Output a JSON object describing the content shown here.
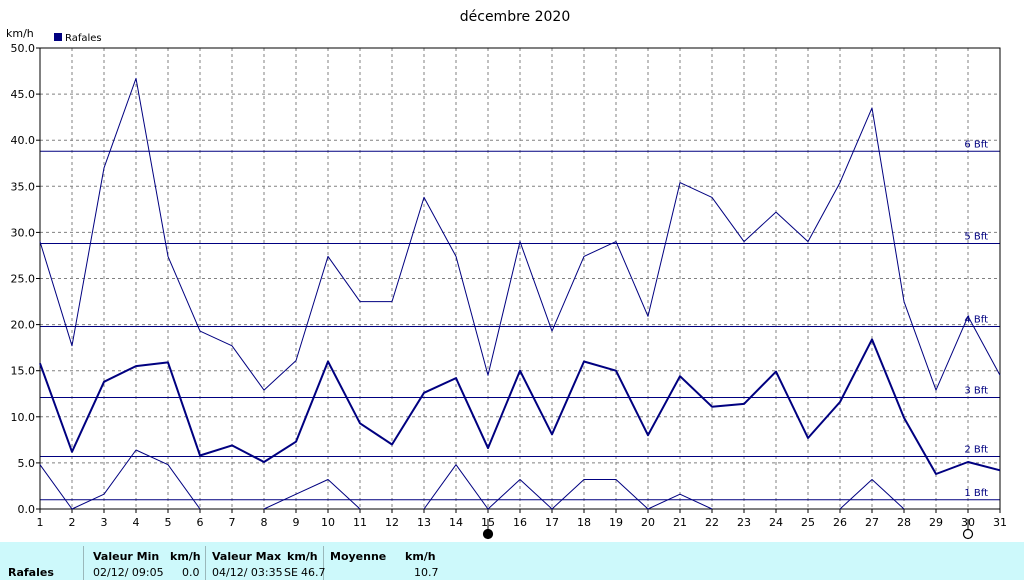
{
  "title": "décembre 2020",
  "y_unit": "km/h",
  "legend": {
    "label": "Rafales",
    "color": "#000080"
  },
  "colors": {
    "line": "#000080",
    "grid": "#808080",
    "footer_bg": "#cdf9fb"
  },
  "chart_data": {
    "type": "line",
    "title": "décembre 2020",
    "ylabel": "km/h",
    "xlabel": "",
    "ylim": [
      0,
      50
    ],
    "y_ticks": [
      "0.0",
      "5.0",
      "10.0",
      "15.0",
      "20.0",
      "25.0",
      "30.0",
      "35.0",
      "40.0",
      "45.0",
      "50.0"
    ],
    "x": [
      1,
      2,
      3,
      4,
      5,
      6,
      7,
      8,
      9,
      10,
      11,
      12,
      13,
      14,
      15,
      16,
      17,
      18,
      19,
      20,
      21,
      22,
      23,
      24,
      25,
      26,
      27,
      28,
      29,
      30,
      31
    ],
    "grid": true,
    "legend_position": "top-left",
    "series": [
      {
        "name": "Rafales",
        "role": "max",
        "values": [
          29.0,
          17.7,
          37.0,
          46.7,
          27.4,
          19.3,
          17.7,
          12.9,
          16.1,
          27.4,
          22.5,
          22.5,
          33.8,
          27.4,
          14.5,
          29.0,
          19.3,
          27.4,
          29.0,
          20.9,
          35.4,
          33.8,
          29.0,
          32.2,
          29.0,
          35.4,
          43.5,
          22.5,
          12.9,
          20.9,
          14.5
        ]
      },
      {
        "name": "Rafales",
        "role": "mean",
        "values": [
          15.8,
          6.2,
          13.8,
          15.5,
          15.9,
          5.8,
          6.9,
          5.1,
          7.3,
          16.0,
          9.3,
          7.0,
          12.6,
          14.2,
          6.6,
          15.0,
          8.1,
          16.0,
          15.0,
          8.0,
          14.4,
          11.1,
          11.4,
          14.9,
          7.7,
          11.6,
          18.4,
          9.9,
          3.8,
          5.1,
          4.2
        ]
      },
      {
        "name": "Rafales",
        "role": "min",
        "values": [
          4.8,
          0.0,
          1.6,
          6.4,
          4.8,
          0.0,
          null,
          0.0,
          1.6,
          3.2,
          0.0,
          null,
          0.0,
          4.8,
          0.0,
          3.2,
          0.0,
          3.2,
          3.2,
          0.0,
          1.6,
          0.0,
          null,
          null,
          null,
          0.0,
          3.2,
          0.0,
          null,
          null,
          null
        ]
      }
    ],
    "beaufort_lines": [
      {
        "label": "1 Bft",
        "value": 1.0
      },
      {
        "label": "2 Bft",
        "value": 5.7
      },
      {
        "label": "3 Bft",
        "value": 12.1
      },
      {
        "label": "4 Bft",
        "value": 19.8
      },
      {
        "label": "5 Bft",
        "value": 28.8
      },
      {
        "label": "6 Bft",
        "value": 38.8
      }
    ],
    "moon_phases": [
      {
        "day": 15,
        "phase": "new"
      },
      {
        "day": 30,
        "phase": "full"
      }
    ]
  },
  "footer": {
    "row_label": "Rafales",
    "min_header": "Valeur Min",
    "min_unit": "km/h",
    "min_date": "02/12/  09:05",
    "min_value": "0.0",
    "max_header": "Valeur Max",
    "max_unit": "km/h",
    "max_date": "04/12/  03:35",
    "max_dir": "SE",
    "max_value": "46.7",
    "avg_header": "Moyenne",
    "avg_unit": "km/h",
    "avg_value": "10.7"
  }
}
